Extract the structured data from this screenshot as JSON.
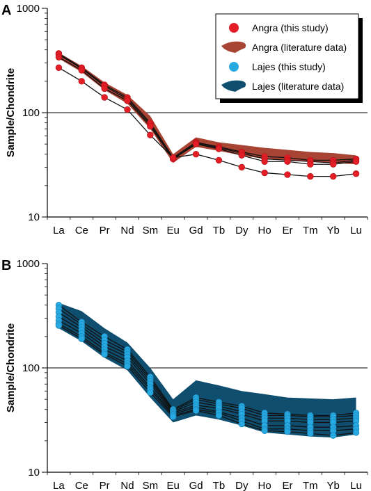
{
  "chart_data": [
    {
      "panel_label": "A",
      "type": "line",
      "yscale": "log",
      "ylabel": "Sample/Chondrite",
      "ylim": [
        10,
        1000
      ],
      "y_ticks": [
        "10",
        "100",
        "1000"
      ],
      "reference_line": 100,
      "categories": [
        "La",
        "Ce",
        "Pr",
        "Nd",
        "Sm",
        "Eu",
        "Gd",
        "Tb",
        "Dy",
        "Ho",
        "Er",
        "Tm",
        "Yb",
        "Lu"
      ],
      "legend": {
        "placement": "top-right",
        "entries": [
          {
            "label": "Angra (this study)",
            "marker": "circle",
            "color": "#e41e26"
          },
          {
            "label": "Angra (literature data)",
            "marker": "area",
            "color": "#a84433"
          },
          {
            "label": "Lajes (this study)",
            "marker": "circle",
            "color": "#27a9e1"
          },
          {
            "label": "Lajes (literature data)",
            "marker": "area",
            "color": "#0f4e6e"
          }
        ]
      },
      "envelope": {
        "color": "#a84433",
        "upper": [
          {
            "x": "La",
            "y": 375
          },
          {
            "x": "Ce",
            "y": 280
          },
          {
            "x": "Pr",
            "y": 195
          },
          {
            "x": "Nd",
            "y": 148
          },
          {
            "x": "Sm",
            "y": 93
          },
          {
            "x": "Eu",
            "y": 40
          },
          {
            "x": "Gd",
            "y": 58
          },
          {
            "x": "Tb",
            "y": 52
          },
          {
            "x": "Dy",
            "y": 49
          },
          {
            "x": "Ho",
            "y": 46
          },
          {
            "x": "Er",
            "y": 44
          },
          {
            "x": "Tm",
            "y": 42
          },
          {
            "x": "Yb",
            "y": 41
          },
          {
            "x": "Lu",
            "y": 39
          }
        ],
        "lower": [
          {
            "x": "La",
            "y": 330
          },
          {
            "x": "Ce",
            "y": 245
          },
          {
            "x": "Pr",
            "y": 165
          },
          {
            "x": "Nd",
            "y": 122
          },
          {
            "x": "Sm",
            "y": 70
          },
          {
            "x": "Eu",
            "y": 33
          },
          {
            "x": "Gd",
            "y": 47
          },
          {
            "x": "Tb",
            "y": 43
          },
          {
            "x": "Dy",
            "y": 39
          },
          {
            "x": "Ho",
            "y": 36
          },
          {
            "x": "Er",
            "y": 35
          },
          {
            "x": "Tm",
            "y": 34
          },
          {
            "x": "Yb",
            "y": 33
          },
          {
            "x": "Lu",
            "y": 32
          }
        ]
      },
      "series": [
        {
          "values": [
            370,
            270,
            185,
            140,
            80,
            37,
            52,
            47,
            42,
            38,
            37,
            35,
            35,
            36
          ]
        },
        {
          "values": [
            360,
            265,
            180,
            135,
            77,
            36,
            51,
            46,
            41,
            36,
            35,
            34,
            33,
            35
          ]
        },
        {
          "values": [
            340,
            255,
            170,
            130,
            74,
            36,
            50,
            45,
            39,
            34,
            34,
            32,
            32,
            34
          ]
        },
        {
          "values": [
            270,
            200,
            140,
            107,
            61,
            37,
            40,
            35,
            30,
            26.5,
            25.5,
            24.5,
            24.5,
            26
          ]
        }
      ],
      "series_color": "#e41e26"
    },
    {
      "panel_label": "B",
      "type": "line",
      "yscale": "log",
      "ylabel": "Sample/Chondrite",
      "ylim": [
        10,
        1000
      ],
      "y_ticks": [
        "10",
        "100",
        "1000"
      ],
      "reference_line": 100,
      "categories": [
        "La",
        "Ce",
        "Pr",
        "Nd",
        "Sm",
        "Eu",
        "Gd",
        "Tb",
        "Dy",
        "Ho",
        "Er",
        "Tm",
        "Yb",
        "Lu"
      ],
      "envelope": {
        "color": "#0f4e6e",
        "upper": [
          {
            "x": "La",
            "y": 420
          },
          {
            "x": "Ce",
            "y": 350
          },
          {
            "x": "Pr",
            "y": 240
          },
          {
            "x": "Nd",
            "y": 175
          },
          {
            "x": "Sm",
            "y": 100
          },
          {
            "x": "Eu",
            "y": 50
          },
          {
            "x": "Gd",
            "y": 76
          },
          {
            "x": "Tb",
            "y": 68
          },
          {
            "x": "Dy",
            "y": 60
          },
          {
            "x": "Ho",
            "y": 56
          },
          {
            "x": "Er",
            "y": 52
          },
          {
            "x": "Tm",
            "y": 51
          },
          {
            "x": "Yb",
            "y": 50
          },
          {
            "x": "Lu",
            "y": 52
          }
        ],
        "lower": [
          {
            "x": "La",
            "y": 240
          },
          {
            "x": "Ce",
            "y": 180
          },
          {
            "x": "Pr",
            "y": 125
          },
          {
            "x": "Nd",
            "y": 95
          },
          {
            "x": "Sm",
            "y": 52
          },
          {
            "x": "Eu",
            "y": 30
          },
          {
            "x": "Gd",
            "y": 35
          },
          {
            "x": "Tb",
            "y": 32
          },
          {
            "x": "Dy",
            "y": 28
          },
          {
            "x": "Ho",
            "y": 24
          },
          {
            "x": "Er",
            "y": 23
          },
          {
            "x": "Tm",
            "y": 22
          },
          {
            "x": "Yb",
            "y": 21.5
          },
          {
            "x": "Lu",
            "y": 23
          }
        ]
      },
      "series": [
        {
          "values": [
            400,
            275,
            200,
            150,
            82,
            40,
            52,
            47,
            43,
            37,
            36,
            35,
            35,
            37
          ]
        },
        {
          "values": [
            370,
            260,
            185,
            143,
            78,
            39,
            50,
            45,
            41,
            35,
            35,
            34,
            34,
            35
          ]
        },
        {
          "values": [
            340,
            245,
            172,
            135,
            74,
            38,
            47,
            43,
            38,
            33,
            33,
            32,
            32,
            33
          ]
        },
        {
          "values": [
            310,
            230,
            160,
            127,
            70,
            37,
            44,
            41,
            36,
            31,
            31,
            30,
            30,
            31
          ]
        },
        {
          "values": [
            285,
            215,
            150,
            117,
            65,
            36,
            42,
            38,
            33,
            28,
            28,
            27,
            27,
            28
          ]
        },
        {
          "values": [
            265,
            200,
            140,
            110,
            62,
            35,
            40,
            37,
            31,
            26,
            26,
            25,
            25,
            26
          ]
        },
        {
          "values": [
            255,
            190,
            135,
            104,
            58,
            34,
            39,
            35,
            29,
            25,
            24.5,
            23.5,
            22.5,
            24
          ]
        }
      ],
      "series_color": "#27a9e1"
    }
  ]
}
